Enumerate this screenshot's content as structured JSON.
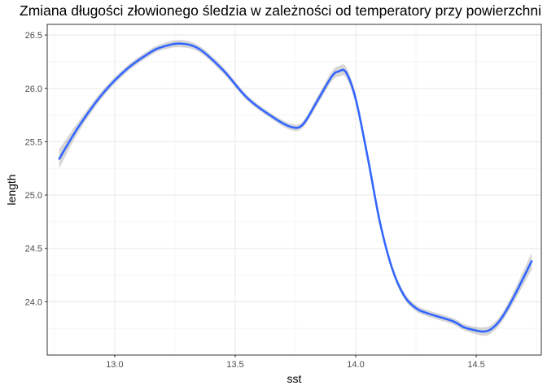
{
  "chart_data": {
    "type": "line",
    "title": "Zmiana długości złowionego śledzia w zależności od temperatory przy powierzchni",
    "xlabel": "sst",
    "ylabel": "length",
    "xlim": [
      12.72,
      14.77
    ],
    "ylim": [
      23.5,
      26.6
    ],
    "x_ticks": [
      13.0,
      13.5,
      14.0,
      14.5
    ],
    "x_tick_labels": [
      "13.0",
      "13.5",
      "14.0",
      "14.5"
    ],
    "y_ticks": [
      24.0,
      24.5,
      25.0,
      25.5,
      26.0,
      26.5
    ],
    "y_tick_labels": [
      "24.0",
      "24.5",
      "25.0",
      "25.5",
      "26.0",
      "26.5"
    ],
    "grid": true,
    "confidence_band": true,
    "series": [
      {
        "line_color": "#3366FF",
        "band_color": "#999999",
        "x": [
          12.77,
          12.85,
          12.95,
          13.05,
          13.15,
          13.2,
          13.27,
          13.35,
          13.45,
          13.55,
          13.65,
          13.73,
          13.78,
          13.84,
          13.9,
          13.93,
          13.96,
          14.0,
          14.05,
          14.1,
          14.15,
          14.2,
          14.25,
          14.3,
          14.4,
          14.45,
          14.5,
          14.53,
          14.56,
          14.6,
          14.65,
          14.73
        ],
        "y": [
          25.34,
          25.64,
          25.95,
          26.18,
          26.34,
          26.39,
          26.42,
          26.37,
          26.17,
          25.91,
          25.74,
          25.64,
          25.66,
          25.88,
          26.11,
          26.16,
          26.15,
          25.9,
          25.35,
          24.75,
          24.32,
          24.06,
          23.94,
          23.89,
          23.82,
          23.76,
          23.73,
          23.72,
          23.74,
          23.83,
          24.02,
          24.38
        ],
        "band_halfwidth": [
          0.09,
          0.05,
          0.035,
          0.03,
          0.03,
          0.03,
          0.035,
          0.03,
          0.03,
          0.025,
          0.025,
          0.03,
          0.03,
          0.04,
          0.045,
          0.05,
          0.05,
          0.045,
          0.035,
          0.03,
          0.03,
          0.03,
          0.03,
          0.03,
          0.03,
          0.03,
          0.035,
          0.04,
          0.04,
          0.04,
          0.05,
          0.08
        ]
      }
    ]
  }
}
